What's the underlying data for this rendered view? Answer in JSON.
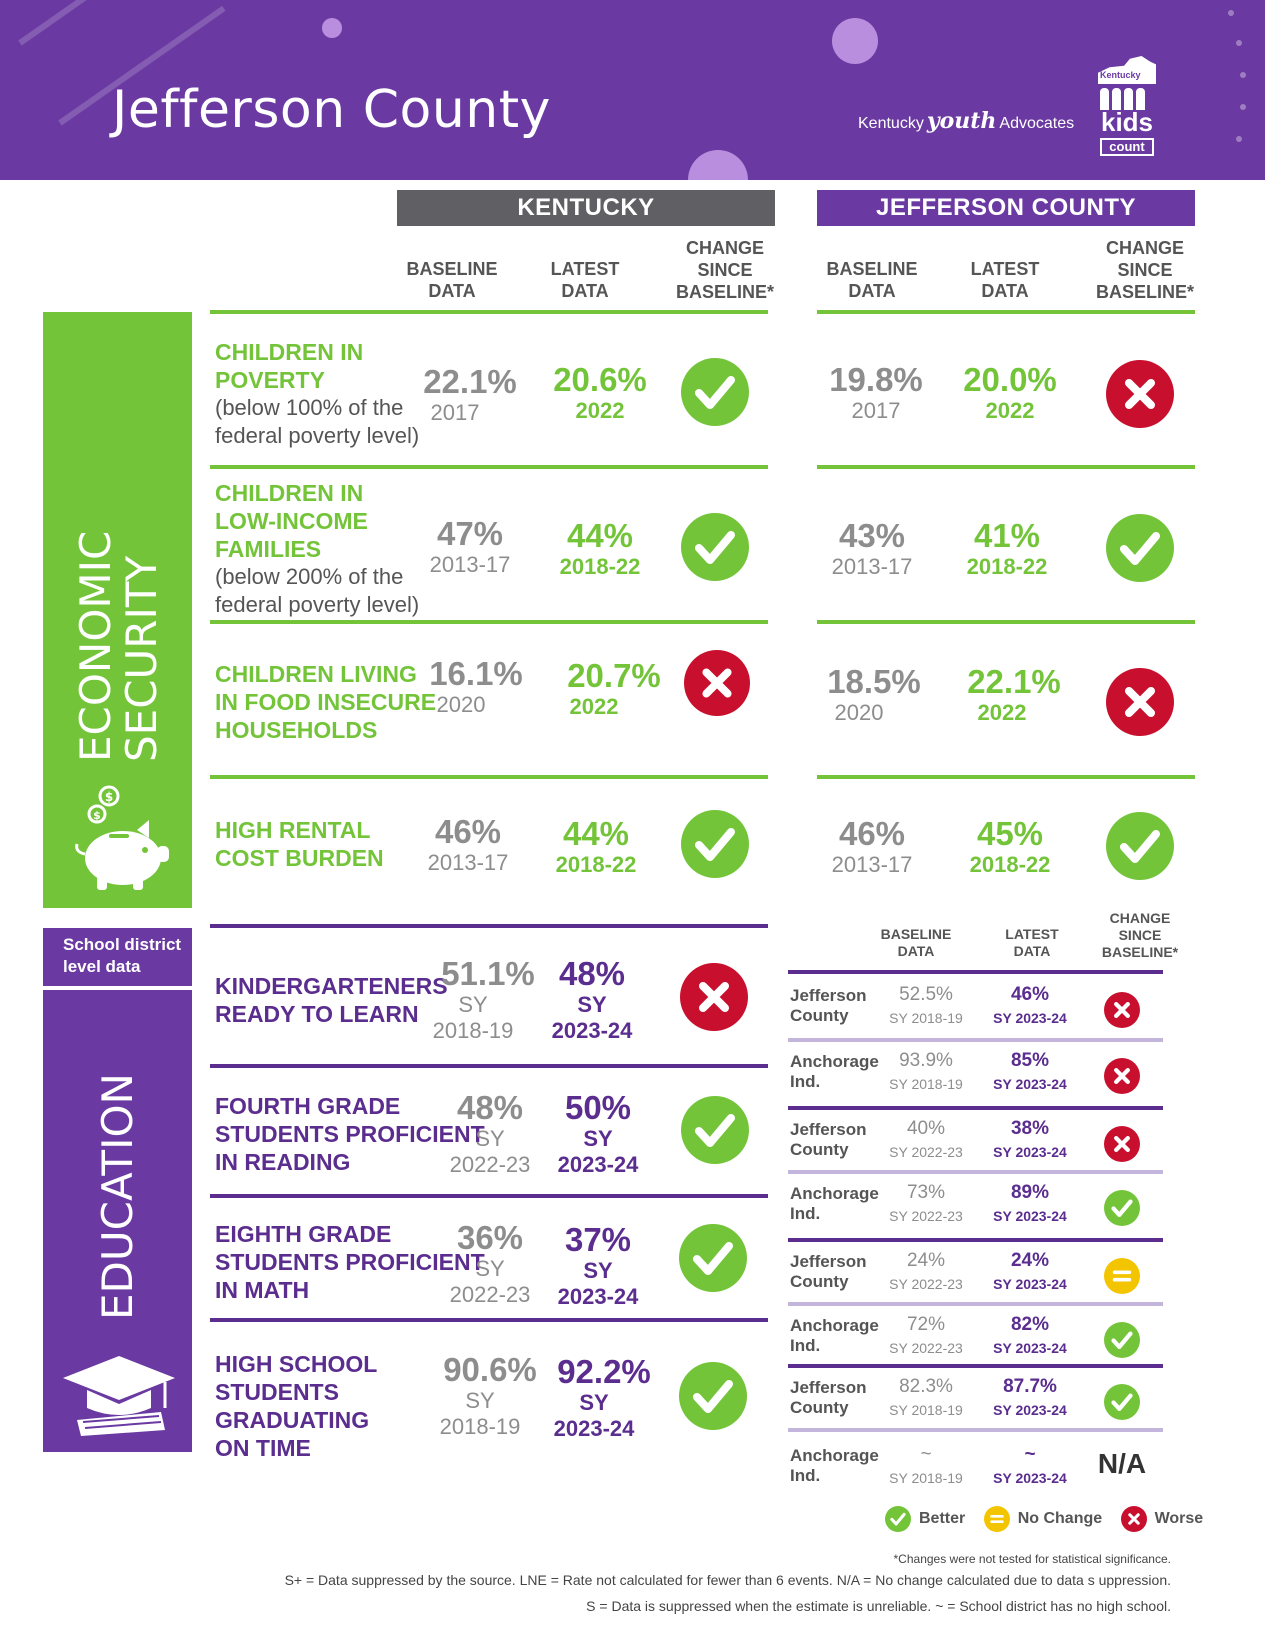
{
  "header": {
    "title": "Jefferson County",
    "org_prefix": "Kentucky",
    "org_youth": "youth",
    "org_suffix": "Advocates",
    "logo_state": "Kentucky",
    "logo_kids": "kids",
    "logo_count": "count"
  },
  "columns": {
    "kentucky": "KENTUCKY",
    "county": "JEFFERSON COUNTY",
    "baseline": [
      "BASELINE",
      "DATA"
    ],
    "latest": [
      "LATEST",
      "DATA"
    ],
    "change": [
      "CHANGE",
      "SINCE",
      "BASELINE*"
    ]
  },
  "sections": {
    "economic": [
      "ECONOMIC",
      "SECURITY"
    ],
    "education": "EDUCATION",
    "school_note": [
      "School district",
      "level data"
    ]
  },
  "economic_rows": [
    {
      "label": [
        "CHILDREN IN",
        "POVERTY"
      ],
      "sub": [
        "(below 100% of the",
        "federal poverty level)"
      ],
      "ky_base": "22.1%",
      "ky_base_yr": "2017",
      "ky_latest": "20.6%",
      "ky_latest_yr": "2022",
      "ky_change": "better",
      "co_base": "19.8%",
      "co_base_yr": "2017",
      "co_latest": "20.0%",
      "co_latest_yr": "2022",
      "co_change": "worse"
    },
    {
      "label": [
        "CHILDREN IN",
        "LOW-INCOME",
        "FAMILIES"
      ],
      "sub": [
        "(below 200% of the",
        "federal poverty level)"
      ],
      "ky_base": "47%",
      "ky_base_yr": "2013-17",
      "ky_latest": "44%",
      "ky_latest_yr": "2018-22",
      "ky_change": "better",
      "co_base": "43%",
      "co_base_yr": "2013-17",
      "co_latest": "41%",
      "co_latest_yr": "2018-22",
      "co_change": "better"
    },
    {
      "label": [
        "CHILDREN LIVING",
        "IN FOOD INSECURE",
        "HOUSEHOLDS"
      ],
      "sub": [],
      "ky_base": "16.1%",
      "ky_base_yr": "2020",
      "ky_latest": "20.7%",
      "ky_latest_yr": "2022",
      "ky_change": "worse",
      "co_base": "18.5%",
      "co_base_yr": "2020",
      "co_latest": "22.1%",
      "co_latest_yr": "2022",
      "co_change": "worse"
    },
    {
      "label": [
        "HIGH RENTAL",
        "COST BURDEN"
      ],
      "sub": [],
      "ky_base": "46%",
      "ky_base_yr": "2013-17",
      "ky_latest": "44%",
      "ky_latest_yr": "2018-22",
      "ky_change": "better",
      "co_base": "46%",
      "co_base_yr": "2013-17",
      "co_latest": "45%",
      "co_latest_yr": "2018-22",
      "co_change": "better"
    }
  ],
  "education_rows": [
    {
      "label": [
        "KINDERGARTENERS",
        "READY TO LEARN"
      ],
      "ky_base": "51.1%",
      "ky_base_yr": [
        "SY",
        "2018-19"
      ],
      "ky_latest": "48%",
      "ky_latest_yr": [
        "SY",
        "2023-24"
      ],
      "ky_change": "worse"
    },
    {
      "label": [
        "FOURTH GRADE",
        "STUDENTS PROFICIENT",
        "IN READING"
      ],
      "ky_base": "48%",
      "ky_base_yr": [
        "SY",
        "2022-23"
      ],
      "ky_latest": "50%",
      "ky_latest_yr": [
        "SY",
        "2023-24"
      ],
      "ky_change": "better"
    },
    {
      "label": [
        "EIGHTH GRADE",
        "STUDENTS PROFICIENT",
        "IN MATH"
      ],
      "ky_base": "36%",
      "ky_base_yr": [
        "SY",
        "2022-23"
      ],
      "ky_latest": "37%",
      "ky_latest_yr": [
        "SY",
        "2023-24"
      ],
      "ky_change": "better"
    },
    {
      "label": [
        "HIGH SCHOOL",
        "STUDENTS",
        "GRADUATING",
        "ON TIME"
      ],
      "ky_base": "90.6%",
      "ky_base_yr": [
        "SY",
        "2018-19"
      ],
      "ky_latest": "92.2%",
      "ky_latest_yr": [
        "SY",
        "2023-24"
      ],
      "ky_change": "better"
    }
  ],
  "school_table": {
    "head_baseline": [
      "BASELINE",
      "DATA"
    ],
    "head_latest": [
      "LATEST",
      "DATA"
    ],
    "head_change": [
      "CHANGE",
      "SINCE",
      "BASELINE*"
    ],
    "rows": [
      {
        "name": [
          "Jefferson",
          "County"
        ],
        "base": "52.5%",
        "base_yr": "SY 2018-19",
        "latest": "46%",
        "latest_yr": "SY 2023-24",
        "change": "worse"
      },
      {
        "name": [
          "Anchorage",
          "Ind."
        ],
        "base": "93.9%",
        "base_yr": "SY 2018-19",
        "latest": "85%",
        "latest_yr": "SY 2023-24",
        "change": "worse"
      },
      {
        "name": [
          "Jefferson",
          "County"
        ],
        "base": "40%",
        "base_yr": "SY 2022-23",
        "latest": "38%",
        "latest_yr": "SY 2023-24",
        "change": "worse"
      },
      {
        "name": [
          "Anchorage",
          "Ind."
        ],
        "base": "73%",
        "base_yr": "SY 2022-23",
        "latest": "89%",
        "latest_yr": "SY 2023-24",
        "change": "better"
      },
      {
        "name": [
          "Jefferson",
          "County"
        ],
        "base": "24%",
        "base_yr": "SY 2022-23",
        "latest": "24%",
        "latest_yr": "SY 2023-24",
        "change": "nochange"
      },
      {
        "name": [
          "Anchorage",
          "Ind."
        ],
        "base": "72%",
        "base_yr": "SY 2022-23",
        "latest": "82%",
        "latest_yr": "SY 2023-24",
        "change": "better"
      },
      {
        "name": [
          "Jefferson",
          "County"
        ],
        "base": "82.3%",
        "base_yr": "SY 2018-19",
        "latest": "87.7%",
        "latest_yr": "SY 2023-24",
        "change": "better"
      },
      {
        "name": [
          "Anchorage",
          "Ind."
        ],
        "base": "~",
        "base_yr": "SY 2018-19",
        "latest": "~",
        "latest_yr": "SY 2023-24",
        "change": "na",
        "change_text": "N/A"
      }
    ]
  },
  "legend": {
    "better": "Better",
    "nochange": "No Change",
    "worse": "Worse"
  },
  "footnotes": {
    "note1": "*Changes were not tested for statistical significance.",
    "note2": "S+ = Data suppressed by the source. LNE = Rate not calculated for fewer than 6 events. N/A = No change calculated due to data s uppression.",
    "note3": "S = Data is suppressed when the estimate is unreliable. ~ = School district has no high school."
  },
  "colors": {
    "purple": "#6a3aa2",
    "dark_purple": "#5a2d8e",
    "green": "#74c43a",
    "red": "#c8102e",
    "yellow": "#f2c500",
    "gray_header": "#5f5f64"
  }
}
